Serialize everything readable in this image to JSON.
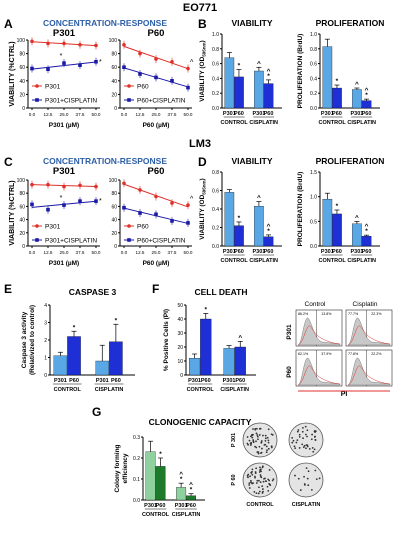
{
  "colors": {
    "light_blue": "#5aa7e6",
    "dark_blue": "#1f2fd6",
    "red": "#e0302a",
    "navy": "#1a1aa6",
    "title_blue": "#2e5fa8",
    "light_green": "#8fd19e",
    "dark_green": "#1c7a2a",
    "pi_red": "#e03030"
  },
  "sections": {
    "eo771": "EO771",
    "lm3": "LM3"
  },
  "panels": {
    "A": "A",
    "B": "B",
    "C": "C",
    "D": "D",
    "E": "E",
    "F": "F",
    "G": "G"
  },
  "chart_data": [
    {
      "id": "A_P301",
      "type": "line",
      "panel": "A",
      "group_title": "CONCENTRATION-RESPONSE",
      "title": "P301",
      "ylabel": "VIABILITY (%CTRL)",
      "xlabel": "P301 (µM)",
      "x": [
        0,
        12.5,
        25,
        37.5,
        50
      ],
      "xticks": [
        "0.0",
        "12.5",
        "25.0",
        "37.5",
        "50.0"
      ],
      "ylim": [
        0,
        100
      ],
      "yticks": [
        "0",
        "20",
        "40",
        "60",
        "80",
        "100"
      ],
      "series": [
        {
          "name": "P301",
          "color": "#e0302a",
          "values": [
            98,
            95,
            95,
            93,
            92
          ]
        },
        {
          "name": "P301+CISPLATIN",
          "color": "#1a1aa6",
          "values": [
            58,
            57,
            66,
            63,
            68
          ]
        }
      ],
      "annotations": [
        "*",
        "*"
      ]
    },
    {
      "id": "A_P60",
      "type": "line",
      "panel": "A",
      "title": "P60",
      "xlabel": "P60 (µM)",
      "x": [
        0,
        12.5,
        25,
        37.5,
        50
      ],
      "xticks": [
        "0.0",
        "12.5",
        "25.0",
        "37.5",
        "50.0"
      ],
      "ylim": [
        0,
        100
      ],
      "yticks": [
        "0",
        "20",
        "40",
        "60",
        "80",
        "100"
      ],
      "series": [
        {
          "name": "P60",
          "color": "#e0302a",
          "values": [
            93,
            80,
            72,
            68,
            58
          ]
        },
        {
          "name": "P60+CISPLATIN",
          "color": "#1a1aa6",
          "values": [
            60,
            50,
            45,
            40,
            30
          ]
        }
      ],
      "annotations": [
        "^"
      ]
    },
    {
      "id": "B_viability",
      "type": "bar",
      "panel": "B",
      "title": "VIABILITY",
      "ylabel": "VIABILITY (OD595nm)",
      "ylabel_main": "VIABILITY (OD",
      "ylabel_sub": "595nm",
      "ylabel_end": ")",
      "ylim": [
        0,
        1.0
      ],
      "yticks": [
        "0.0",
        "0.2",
        "0.4",
        "0.6",
        "0.8",
        "1.0"
      ],
      "categories": [
        "P301",
        "P60",
        "P301",
        "P60"
      ],
      "groups": [
        "CONTROL",
        "CISPLATIN"
      ],
      "values": [
        0.68,
        0.42,
        0.5,
        0.33
      ],
      "errors": [
        0.07,
        0.1,
        0.05,
        0.05
      ],
      "bar_colors": [
        "#5aa7e6",
        "#1f2fd6",
        "#5aa7e6",
        "#1f2fd6"
      ],
      "marks": [
        "",
        "*",
        "^",
        "^\n*"
      ]
    },
    {
      "id": "B_proliferation",
      "type": "bar",
      "panel": "B",
      "title": "PROLIFERATION",
      "ylabel": "PROLIFERATION (BrdU)",
      "ylim": [
        0,
        1.0
      ],
      "yticks": [
        "0.0",
        "0.2",
        "0.4",
        "0.6",
        "0.8",
        "1.0"
      ],
      "categories": [
        "P301",
        "P60",
        "P301",
        "P60"
      ],
      "groups": [
        "CONTROL",
        "CISPLATIN"
      ],
      "values": [
        0.83,
        0.27,
        0.25,
        0.1
      ],
      "errors": [
        0.1,
        0.04,
        0.02,
        0.02
      ],
      "bar_colors": [
        "#5aa7e6",
        "#1f2fd6",
        "#5aa7e6",
        "#1f2fd6"
      ],
      "marks": [
        "",
        "*",
        "^",
        "^\n*"
      ]
    },
    {
      "id": "C_P301",
      "type": "line",
      "panel": "C",
      "group_title": "CONCENTRATION-RESPONSE",
      "title": "P301",
      "ylabel": "VIABILITY (%CTRL)",
      "xlabel": "P301 (µM)",
      "x": [
        0,
        12.5,
        25,
        37.5,
        50
      ],
      "xticks": [
        "0.0",
        "12.5",
        "25.0",
        "37.5",
        "50.0"
      ],
      "ylim": [
        0,
        100
      ],
      "yticks": [
        "0",
        "20",
        "40",
        "60",
        "80",
        "100"
      ],
      "series": [
        {
          "name": "P301",
          "color": "#e0302a",
          "values": [
            93,
            93,
            90,
            92,
            90
          ]
        },
        {
          "name": "P301+CISPLATIN",
          "color": "#1a1aa6",
          "values": [
            63,
            55,
            62,
            68,
            68
          ]
        }
      ],
      "annotations": [
        "*",
        "*"
      ]
    },
    {
      "id": "C_P60",
      "type": "line",
      "panel": "C",
      "title": "P60",
      "xlabel": "P60 (µM)",
      "x": [
        0,
        12.5,
        25,
        37.5,
        50
      ],
      "xticks": [
        "0.0",
        "12.5",
        "25.0",
        "37.5",
        "50.0"
      ],
      "ylim": [
        0,
        100
      ],
      "yticks": [
        "0",
        "20",
        "40",
        "60",
        "80",
        "100"
      ],
      "series": [
        {
          "name": "P60",
          "color": "#e0302a",
          "values": [
            95,
            85,
            75,
            65,
            62
          ]
        },
        {
          "name": "P60+CISPLATIN",
          "color": "#1a1aa6",
          "values": [
            58,
            50,
            48,
            38,
            35
          ]
        }
      ],
      "annotations": [
        "^"
      ]
    },
    {
      "id": "D_viability",
      "type": "bar",
      "panel": "D",
      "title": "VIABILITY",
      "ylabel": "VIABILITY (OD595nm)",
      "ylabel_main": "VIABILITY (OD",
      "ylabel_sub": "595nm",
      "ylabel_end": ")",
      "ylim": [
        0,
        0.8
      ],
      "yticks": [
        "0.0",
        "0.2",
        "0.4",
        "0.6",
        "0.8"
      ],
      "categories": [
        "P301",
        "P60",
        "P301",
        "P60"
      ],
      "groups": [
        "CONTROL",
        "CISPLATIN"
      ],
      "values": [
        0.58,
        0.22,
        0.43,
        0.1
      ],
      "errors": [
        0.03,
        0.04,
        0.05,
        0.02
      ],
      "bar_colors": [
        "#5aa7e6",
        "#1f2fd6",
        "#5aa7e6",
        "#1f2fd6"
      ],
      "marks": [
        "",
        "*",
        "^",
        "^\n*"
      ]
    },
    {
      "id": "D_proliferation",
      "type": "bar",
      "panel": "D",
      "title": "PROLIFERATION",
      "ylabel": "PROLIFERATION (BrdU)",
      "ylim": [
        0,
        1.5
      ],
      "yticks": [
        "0.0",
        "0.5",
        "1.0",
        "1.5"
      ],
      "categories": [
        "P301",
        "P60",
        "P301",
        "P60"
      ],
      "groups": [
        "CONTROL",
        "CISPLATIN"
      ],
      "values": [
        0.95,
        0.65,
        0.45,
        0.2
      ],
      "errors": [
        0.12,
        0.08,
        0.05,
        0.02
      ],
      "bar_colors": [
        "#5aa7e6",
        "#1f2fd6",
        "#5aa7e6",
        "#1f2fd6"
      ],
      "marks": [
        "",
        "*",
        "^",
        "^\n*"
      ]
    },
    {
      "id": "E_caspase",
      "type": "bar",
      "panel": "E",
      "title": "CASPASE 3",
      "ylabel": "Caspase 3 activity",
      "ylabel2": "(Relativized to control)",
      "ylim": [
        0,
        4
      ],
      "yticks": [
        "0",
        "1",
        "2",
        "3",
        "4"
      ],
      "categories": [
        "P301",
        "P60",
        "P301",
        "P60"
      ],
      "groups": [
        "CONTROL",
        "CISPLATIN"
      ],
      "values": [
        1.1,
        2.2,
        0.8,
        1.9
      ],
      "errors": [
        0.2,
        0.3,
        0.9,
        1.0
      ],
      "bar_colors": [
        "#5aa7e6",
        "#1f2fd6",
        "#5aa7e6",
        "#1f2fd6"
      ],
      "marks": [
        "",
        "*",
        "",
        "*"
      ]
    },
    {
      "id": "F_celldeath",
      "type": "bar",
      "panel": "F",
      "title": "CELL DEATH",
      "ylabel": "% Positive Cells (PI)",
      "ylim": [
        0,
        50
      ],
      "yticks": [
        "0",
        "10",
        "20",
        "30",
        "40",
        "50"
      ],
      "categories": [
        "P301",
        "P60",
        "P301",
        "P60"
      ],
      "groups": [
        "CONTROL",
        "CISPLATIN"
      ],
      "values": [
        12,
        40,
        19,
        20
      ],
      "errors": [
        3,
        4,
        2,
        4
      ],
      "bar_colors": [
        "#5aa7e6",
        "#1f2fd6",
        "#5aa7e6",
        "#1f2fd6"
      ],
      "marks": [
        "",
        "*",
        "",
        "^"
      ]
    },
    {
      "id": "G_clonogenic",
      "type": "bar",
      "panel": "G",
      "title": "CLONOGENIC CAPACITY",
      "ylabel": "Colony forming",
      "ylabel2": "efficiency",
      "ylim": [
        0,
        0.3
      ],
      "yticks": [
        "0.0",
        "0.1",
        "0.2",
        "0.3"
      ],
      "categories": [
        "P301",
        "P60",
        "P301",
        "P60"
      ],
      "groups": [
        "CONTROL",
        "CISPLATIN"
      ],
      "values": [
        0.23,
        0.16,
        0.06,
        0.02
      ],
      "errors": [
        0.05,
        0.04,
        0.02,
        0.01
      ],
      "bar_colors": [
        "#8fd19e",
        "#1c7a2a",
        "#8fd19e",
        "#1c7a2a"
      ],
      "marks": [
        "",
        "*",
        "^\n*",
        "^\n*"
      ]
    }
  ],
  "flow": {
    "col_labels": [
      "Control",
      "Cisplatin"
    ],
    "row_labels": [
      "P301",
      "P60"
    ],
    "pct_left": [
      [
        "86.2%",
        "13.8%"
      ],
      [
        "77.7%",
        "22.3%"
      ]
    ],
    "pct_left2": [
      [
        "62.1%",
        "37.9%"
      ],
      [
        "77.8%",
        "22.2%"
      ]
    ],
    "xlabel": "PI"
  },
  "plates": {
    "row_labels": [
      "P 301",
      "P 60"
    ],
    "col_labels": [
      "CONTROL",
      "CISPLATIN"
    ]
  }
}
